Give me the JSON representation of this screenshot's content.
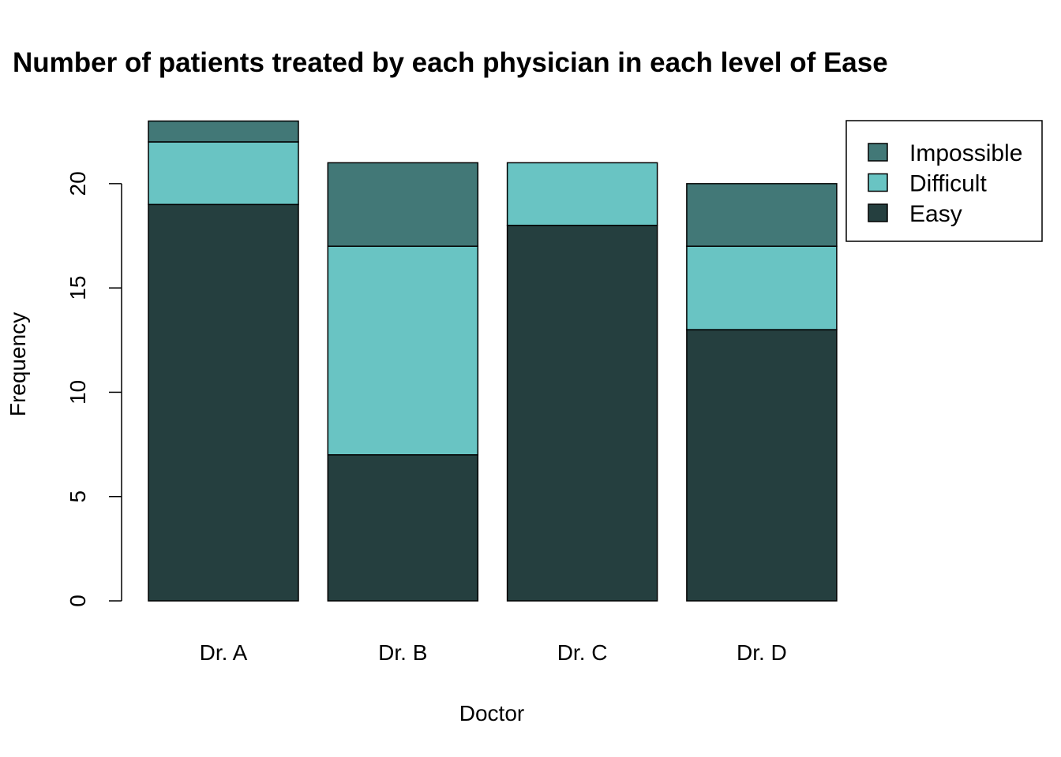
{
  "chart_data": {
    "type": "bar",
    "stacked": true,
    "title": "Number of patients treated by each physician in each level of Ease",
    "xlabel": "Doctor",
    "ylabel": "Frequency",
    "categories": [
      "Dr. A",
      "Dr. B",
      "Dr. C",
      "Dr. D"
    ],
    "series": [
      {
        "name": "Easy",
        "color": "#253F3F",
        "values": [
          19,
          7,
          18,
          13
        ]
      },
      {
        "name": "Difficult",
        "color": "#69C4C3",
        "values": [
          3,
          10,
          3,
          4
        ]
      },
      {
        "name": "Impossible",
        "color": "#427877",
        "values": [
          1,
          4,
          0,
          3
        ]
      }
    ],
    "yticks": [
      "0",
      "5",
      "10",
      "15",
      "20"
    ],
    "ylim": [
      0,
      23
    ],
    "legend": {
      "position": "top-right",
      "entries": [
        "Impossible",
        "Difficult",
        "Easy"
      ]
    }
  }
}
